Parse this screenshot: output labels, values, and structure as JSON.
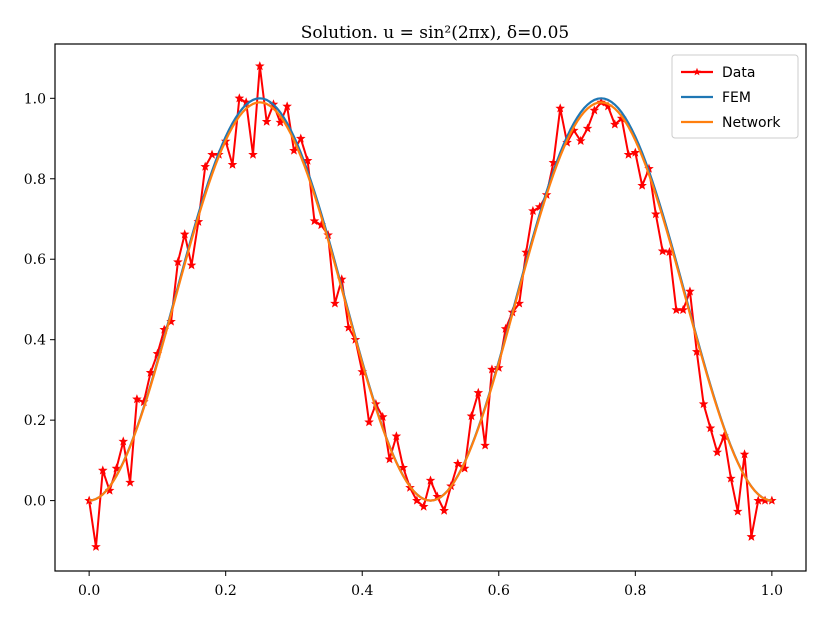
{
  "chart_data": {
    "type": "line",
    "title": "Solution. u = sin²(2πx), δ=0.05",
    "xlabel": "",
    "ylabel": "",
    "xlim": [
      -0.05,
      1.05
    ],
    "ylim": [
      -0.175,
      1.135
    ],
    "xticks": [
      0.0,
      0.2,
      0.4,
      0.6,
      0.8,
      1.0
    ],
    "xtick_labels": [
      "0.0",
      "0.2",
      "0.4",
      "0.6",
      "0.8",
      "1.0"
    ],
    "yticks": [
      0.0,
      0.2,
      0.4,
      0.6,
      0.8,
      1.0
    ],
    "ytick_labels": [
      "0.0",
      "0.2",
      "0.4",
      "0.6",
      "0.8",
      "1.0"
    ],
    "grid": false,
    "legend_position": "top-right",
    "series": [
      {
        "name": "Data",
        "color": "#ff0000",
        "marker": "star",
        "x": [
          0.0,
          0.01,
          0.02,
          0.03,
          0.04,
          0.05,
          0.06,
          0.07,
          0.08,
          0.09,
          0.1,
          0.11,
          0.12,
          0.13,
          0.14,
          0.15,
          0.16,
          0.17,
          0.18,
          0.19,
          0.2,
          0.21,
          0.22,
          0.23,
          0.24,
          0.25,
          0.26,
          0.27,
          0.28,
          0.29,
          0.3,
          0.31,
          0.32,
          0.33,
          0.34,
          0.35,
          0.36,
          0.37,
          0.38,
          0.39,
          0.4,
          0.41,
          0.42,
          0.43,
          0.44,
          0.45,
          0.46,
          0.47,
          0.48,
          0.49,
          0.5,
          0.51,
          0.52,
          0.53,
          0.54,
          0.55,
          0.56,
          0.57,
          0.58,
          0.59,
          0.6,
          0.61,
          0.62,
          0.63,
          0.64,
          0.65,
          0.66,
          0.67,
          0.68,
          0.69,
          0.7,
          0.71,
          0.72,
          0.73,
          0.74,
          0.75,
          0.76,
          0.77,
          0.78,
          0.79,
          0.8,
          0.81,
          0.82,
          0.83,
          0.84,
          0.85,
          0.86,
          0.87,
          0.88,
          0.89,
          0.9,
          0.91,
          0.92,
          0.93,
          0.94,
          0.95,
          0.96,
          0.97,
          0.98,
          0.99,
          1.0
        ],
        "y": [
          0.0,
          -0.115,
          0.075,
          0.025,
          0.08,
          0.147,
          0.045,
          0.252,
          0.245,
          0.318,
          0.365,
          0.425,
          0.445,
          0.593,
          0.662,
          0.585,
          0.693,
          0.83,
          0.86,
          0.86,
          0.893,
          0.835,
          1.0,
          0.99,
          0.86,
          1.08,
          0.942,
          0.985,
          0.94,
          0.98,
          0.87,
          0.9,
          0.845,
          0.695,
          0.685,
          0.66,
          0.49,
          0.55,
          0.43,
          0.4,
          0.32,
          0.195,
          0.24,
          0.208,
          0.103,
          0.16,
          0.082,
          0.032,
          0.0,
          -0.015,
          0.05,
          0.01,
          -0.025,
          0.036,
          0.092,
          0.08,
          0.21,
          0.268,
          0.137,
          0.326,
          0.33,
          0.427,
          0.468,
          0.49,
          0.617,
          0.72,
          0.73,
          0.76,
          0.84,
          0.975,
          0.89,
          0.92,
          0.894,
          0.925,
          0.97,
          0.99,
          0.98,
          0.935,
          0.95,
          0.86,
          0.865,
          0.783,
          0.825,
          0.712,
          0.62,
          0.618,
          0.474,
          0.474,
          0.52,
          0.37,
          0.24,
          0.18,
          0.12,
          0.16,
          0.055,
          -0.027,
          0.115,
          -0.09,
          0.0,
          0.0,
          0.0
        ]
      },
      {
        "name": "FEM",
        "color": "#1f77b4",
        "function": "sin^2(2πx)",
        "samples": 201
      },
      {
        "name": "Network",
        "color": "#ff7f0e",
        "function": "0.99·sin^2(2πx)",
        "samples": 201
      }
    ]
  }
}
